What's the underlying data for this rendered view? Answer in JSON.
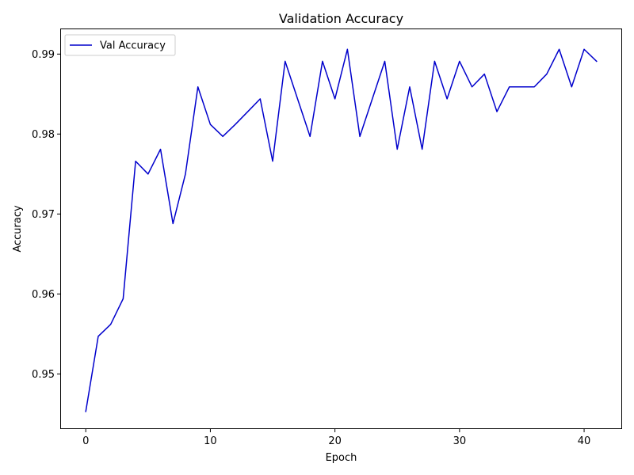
{
  "chart_data": {
    "type": "line",
    "title": "Validation Accuracy",
    "xlabel": "Epoch",
    "ylabel": "Accuracy",
    "xlim": [
      -2.05,
      43.05
    ],
    "ylim": [
      0.9431,
      0.9932
    ],
    "x_ticks": [
      0,
      10,
      20,
      30,
      40
    ],
    "y_ticks": [
      0.95,
      0.96,
      0.97,
      0.98,
      0.99
    ],
    "grid": false,
    "legend": {
      "placement": "top-left",
      "entries": [
        "Val Accuracy"
      ]
    },
    "series": [
      {
        "name": "Val Accuracy",
        "color": "#0000cc",
        "x": [
          0,
          1,
          2,
          3,
          4,
          5,
          6,
          7,
          8,
          9,
          10,
          11,
          12,
          13,
          14,
          15,
          16,
          17,
          18,
          19,
          20,
          21,
          22,
          23,
          24,
          25,
          26,
          27,
          28,
          29,
          30,
          31,
          32,
          33,
          34,
          35,
          36,
          37,
          38,
          39,
          40,
          41
        ],
        "values": [
          0.9453,
          0.9547,
          0.9562,
          0.9594,
          0.9766,
          0.975,
          0.9781,
          0.9688,
          0.975,
          0.9859,
          0.9812,
          0.9797,
          0.9812,
          0.9828,
          0.9844,
          0.9766,
          0.9891,
          0.9844,
          0.9797,
          0.9891,
          0.9844,
          0.9906,
          0.9797,
          0.9844,
          0.9891,
          0.9781,
          0.9859,
          0.9781,
          0.9891,
          0.9844,
          0.9891,
          0.9859,
          0.9875,
          0.9828,
          0.9859,
          0.9859,
          0.9859,
          0.9875,
          0.9906,
          0.9859,
          0.9906,
          0.9891
        ]
      }
    ]
  }
}
